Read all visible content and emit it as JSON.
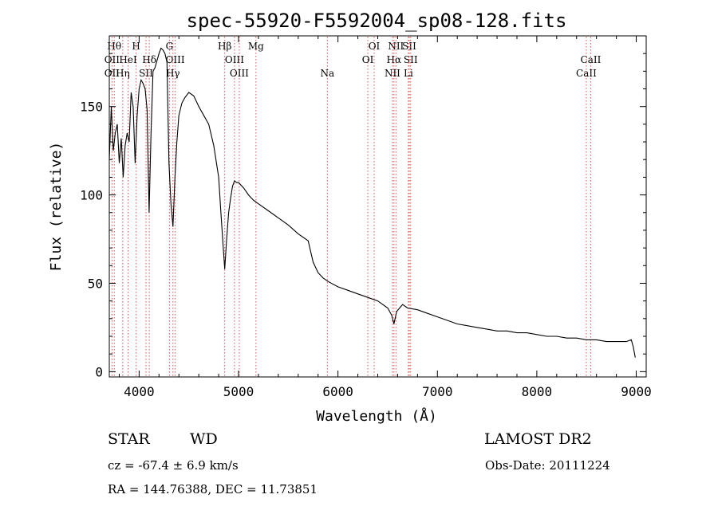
{
  "chart_data": {
    "type": "line",
    "title": "spec-55920-F5592004_sp08-128.fits",
    "xlabel": "Wavelength (Å)",
    "ylabel": "Flux (relative)",
    "xlim": [
      3700,
      9100
    ],
    "ylim": [
      -3,
      190
    ],
    "xticks": [
      4000,
      5000,
      6000,
      7000,
      8000,
      9000
    ],
    "yticks": [
      0,
      50,
      100,
      150
    ],
    "grid": false,
    "series": [
      {
        "color": "#000000",
        "x": [
          3700,
          3720,
          3740,
          3760,
          3780,
          3800,
          3820,
          3840,
          3860,
          3880,
          3900,
          3920,
          3940,
          3960,
          3980,
          4000,
          4020,
          4040,
          4060,
          4080,
          4100,
          4120,
          4140,
          4160,
          4180,
          4200,
          4220,
          4240,
          4260,
          4280,
          4300,
          4320,
          4340,
          4360,
          4380,
          4400,
          4430,
          4460,
          4500,
          4550,
          4600,
          4650,
          4700,
          4750,
          4800,
          4820,
          4840,
          4861,
          4880,
          4900,
          4920,
          4940,
          4960,
          4980,
          5000,
          5050,
          5100,
          5150,
          5200,
          5300,
          5400,
          5500,
          5600,
          5700,
          5750,
          5800,
          5850,
          5900,
          6000,
          6100,
          6200,
          6300,
          6400,
          6500,
          6540,
          6563,
          6590,
          6620,
          6650,
          6700,
          6800,
          6900,
          7000,
          7100,
          7200,
          7300,
          7400,
          7500,
          7600,
          7700,
          7800,
          7900,
          8000,
          8100,
          8200,
          8300,
          8400,
          8500,
          8600,
          8700,
          8800,
          8900,
          8950,
          8970,
          8990
        ],
        "y": [
          120,
          150,
          125,
          135,
          140,
          118,
          132,
          110,
          128,
          135,
          130,
          158,
          150,
          118,
          145,
          160,
          165,
          163,
          160,
          148,
          90,
          135,
          170,
          172,
          176,
          180,
          183,
          182,
          180,
          175,
          118,
          95,
          82,
          110,
          130,
          145,
          152,
          155,
          158,
          156,
          150,
          145,
          140,
          128,
          110,
          92,
          75,
          58,
          75,
          90,
          98,
          105,
          108,
          107,
          107,
          104,
          100,
          97,
          95,
          91,
          87,
          83,
          78,
          74,
          62,
          56,
          53,
          51,
          48,
          46,
          44,
          42,
          40,
          36,
          32,
          27,
          34,
          36,
          38,
          36,
          35,
          33,
          31,
          29,
          27,
          26,
          25,
          24,
          23,
          23,
          22,
          22,
          21,
          20,
          20,
          19,
          19,
          18,
          18,
          17,
          17,
          17,
          18,
          14,
          8
        ]
      }
    ],
    "lines_top": [
      {
        "x": 3750,
        "label": "Hθ"
      },
      {
        "x": 3970,
        "label": "H"
      },
      {
        "x": 4305,
        "label": "G"
      },
      {
        "x": 4861,
        "label": "Hβ"
      },
      {
        "x": 5175,
        "label": "Mg"
      },
      {
        "x": 6364,
        "label": "OI"
      },
      {
        "x": 6583,
        "label": "NII"
      },
      {
        "x": 6717,
        "label": "SII"
      }
    ],
    "lines_mid": [
      {
        "x": 3727,
        "label": "OII"
      },
      {
        "x": 3889,
        "label": "HeI"
      },
      {
        "x": 4102,
        "label": "Hδ"
      },
      {
        "x": 4363,
        "label": "OIII"
      },
      {
        "x": 4959,
        "label": "OIII"
      },
      {
        "x": 6300,
        "label": "OI"
      },
      {
        "x": 6563,
        "label": "Hα"
      },
      {
        "x": 6731,
        "label": "SII"
      },
      {
        "x": 8542,
        "label": "CaII"
      }
    ],
    "lines_low": [
      {
        "x": 3727,
        "label": "OII"
      },
      {
        "x": 3835,
        "label": "Hη"
      },
      {
        "x": 4069,
        "label": "SII"
      },
      {
        "x": 4340,
        "label": "Hγ"
      },
      {
        "x": 5007,
        "label": "OIII"
      },
      {
        "x": 5893,
        "label": "Na"
      },
      {
        "x": 6548,
        "label": "NII"
      },
      {
        "x": 6708,
        "label": "Li"
      },
      {
        "x": 8498,
        "label": "CaII"
      }
    ]
  },
  "info": {
    "object_class": "STAR",
    "subclass": "WD",
    "survey": "LAMOST DR2",
    "cz": "cz = -67.4 ± 6.9 km/s",
    "obs_date": "Obs-Date: 20111224",
    "coords": "RA = 144.76388, DEC =  11.73851"
  }
}
